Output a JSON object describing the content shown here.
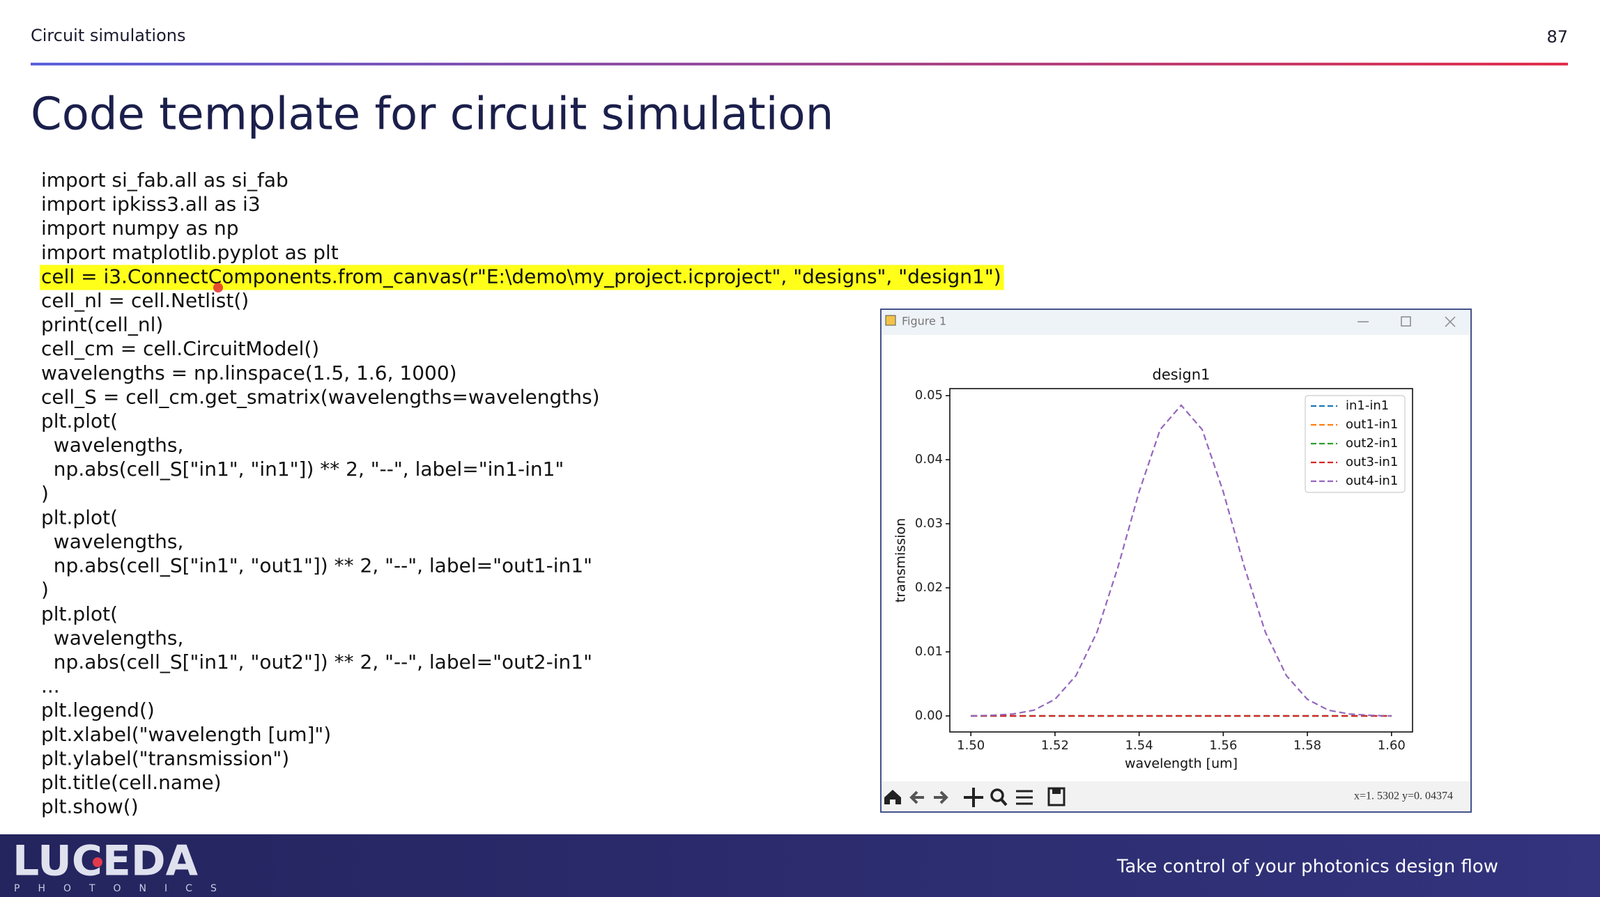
{
  "header": {
    "section": "Circuit simulations",
    "page_number": "87"
  },
  "title": "Code template for circuit simulation",
  "code": {
    "highlight_line": 4,
    "lines": [
      "import si_fab.all as si_fab",
      "import ipkiss3.all as i3",
      "import numpy as np",
      "import matplotlib.pyplot as plt",
      "cell = i3.ConnectComponents.from_canvas(r\"E:\\demo\\my_project.icproject\", \"designs\", \"design1\")",
      "cell_nl = cell.Netlist()",
      "print(cell_nl)",
      "cell_cm = cell.CircuitModel()",
      "wavelengths = np.linspace(1.5, 1.6, 1000)",
      "cell_S = cell_cm.get_smatrix(wavelengths=wavelengths)",
      "plt.plot(",
      "  wavelengths,",
      "  np.abs(cell_S[\"in1\", \"in1\"]) ** 2, \"--\", label=\"in1-in1\"",
      ")",
      "plt.plot(",
      "  wavelengths,",
      "  np.abs(cell_S[\"in1\", \"out1\"]) ** 2, \"--\", label=\"out1-in1\"",
      ")",
      "plt.plot(",
      "  wavelengths,",
      "  np.abs(cell_S[\"in1\", \"out2\"]) ** 2, \"--\", label=\"out2-in1\"",
      "...",
      "plt.legend()",
      "plt.xlabel(\"wavelength [um]\")",
      "plt.ylabel(\"transmission\")",
      "plt.title(cell.name)",
      "plt.show()"
    ]
  },
  "figure": {
    "window_title": "Figure 1",
    "status": "x=1. 5302  y=0. 04374",
    "chart_data": {
      "type": "line",
      "title": "design1",
      "x_label": "wavelength [um]",
      "y_label": "transmission",
      "x": [
        1.5,
        1.505,
        1.51,
        1.515,
        1.52,
        1.525,
        1.53,
        1.535,
        1.54,
        1.545,
        1.55,
        1.555,
        1.56,
        1.565,
        1.57,
        1.575,
        1.58,
        1.585,
        1.59,
        1.595,
        1.6
      ],
      "series": [
        {
          "name": "in1-in1",
          "color": "#1f77b4",
          "values": [
            0,
            0,
            0,
            0,
            0,
            0,
            0,
            0,
            0,
            0,
            0,
            0,
            0,
            0,
            0,
            0,
            0,
            0,
            0,
            0,
            0
          ]
        },
        {
          "name": "out1-in1",
          "color": "#ff7f0e",
          "values": [
            0,
            0,
            0,
            0,
            0,
            0,
            0,
            0,
            0,
            0,
            0,
            0,
            0,
            0,
            0,
            0,
            0,
            0,
            0,
            0,
            0
          ]
        },
        {
          "name": "out2-in1",
          "color": "#2ca02c",
          "values": [
            0,
            0,
            0,
            0,
            0,
            0,
            0,
            0,
            0,
            0,
            0,
            0,
            0,
            0,
            0,
            0,
            0,
            0,
            0,
            0,
            0
          ]
        },
        {
          "name": "out3-in1",
          "color": "#d62728",
          "values": [
            0,
            0,
            0,
            0,
            0,
            0,
            0,
            0,
            0,
            0,
            0,
            0,
            0,
            0,
            0,
            0,
            0,
            0,
            0,
            0,
            0
          ]
        },
        {
          "name": "out4-in1",
          "color": "#9467bd",
          "values": [
            0,
            0.0001,
            0.0003,
            0.0009,
            0.0026,
            0.0063,
            0.0131,
            0.0233,
            0.035,
            0.0447,
            0.0485,
            0.0447,
            0.035,
            0.0233,
            0.0131,
            0.0063,
            0.0026,
            0.0009,
            0.0003,
            0.0001,
            0
          ]
        }
      ],
      "xlim": [
        1.495,
        1.605
      ],
      "ylim": [
        -0.0025,
        0.0511
      ],
      "xticks": [
        {
          "value": 1.5,
          "label": "1.50"
        },
        1.52,
        1.54,
        1.56,
        1.58,
        {
          "value": 1.6,
          "label": "1.60"
        }
      ],
      "yticks": [
        {
          "value": 0,
          "label": "0.00"
        },
        0.01,
        0.02,
        0.03,
        0.04,
        0.05
      ],
      "line_style": "dashed",
      "legend": "upper right"
    }
  },
  "footer": {
    "logo": "LUCEDA",
    "logo_sub": "PHOTONICS",
    "tagline": "Take control of your photonics design flow"
  }
}
